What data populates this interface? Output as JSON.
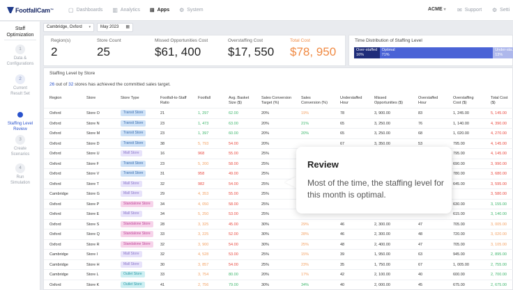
{
  "nav": {
    "brand": "FootfallCam",
    "brand_tm": "™",
    "items": [
      {
        "label": "Dashboards",
        "icon": "dashboard-icon",
        "glyph": "▢"
      },
      {
        "label": "Analytics",
        "icon": "analytics-icon",
        "glyph": "▥"
      },
      {
        "label": "Apps",
        "icon": "apps-icon",
        "glyph": "⊞"
      },
      {
        "label": "System",
        "icon": "system-icon",
        "glyph": "⚙"
      }
    ],
    "account": "ACME",
    "support": "Support",
    "settings": "Setti"
  },
  "sidebar": {
    "title": "Staff\nOptimization",
    "steps": [
      {
        "number": "1",
        "label": "Data &\nConfigurations"
      },
      {
        "number": "2",
        "label": "Current\nResult Set"
      },
      {
        "number": "",
        "label": "Staffing Level\nReview"
      },
      {
        "number": "3",
        "label": "Create\nScenarios"
      },
      {
        "number": "4",
        "label": "Run\nSimulation"
      }
    ]
  },
  "filters": {
    "site": "Cambridge, Oxford",
    "month": "May 2023"
  },
  "kpis": [
    {
      "label": "Region(s)",
      "value": "2"
    },
    {
      "label": "Store Count",
      "value": "25"
    },
    {
      "label": "Missed Opportunities Cost",
      "value": "$61, 400"
    },
    {
      "label": "Overstaffing Cost",
      "value": "$17, 550"
    },
    {
      "label": "Total Cost",
      "value": "$78, 950"
    }
  ],
  "time_distribution": {
    "title": "Time Distribution of Staffing Level",
    "segments": [
      {
        "label": "Over-staffed",
        "pct": "16%",
        "value": 16,
        "color": "#1f2d7a"
      },
      {
        "label": "Optimal",
        "pct": "71%",
        "value": 71,
        "color": "#4a63d6"
      },
      {
        "label": "Under-sta…",
        "pct": "13%",
        "value": 13,
        "color": "#aeb8ec"
      }
    ]
  },
  "table": {
    "title": "Staffing Level by Store",
    "summary_count": "26",
    "summary_mid": " out of ",
    "summary_total": "32",
    "summary_rest": " stores has achieved the committed sales target.",
    "headers": [
      "Region",
      "Store",
      "Store Type",
      "Footfall-to-Staff\nRatio",
      "Footfall",
      "Avg. Basket\nSize ($)",
      "Sales Conversion\nTarget (%)",
      "Sales\nConversion (%)",
      "Understaffed\nHour",
      "Missed\nOpportunities ($)",
      "Overstaffed\nHour",
      "Overstaffing\nCost ($)",
      "Total Cost ($)"
    ],
    "rows": [
      {
        "region": "Oxford",
        "store": "Store O",
        "type": "Transit Store",
        "ratio": "21",
        "footfall": "1, 297",
        "basket": "62.00",
        "target": "20%",
        "conv": "19%",
        "under": "78",
        "missed": "3, 900.00",
        "over": "83",
        "overcost": "1, 245.00",
        "total": "5, 145.00"
      },
      {
        "region": "Oxford",
        "store": "Store N",
        "type": "Transit Store",
        "ratio": "23",
        "footfall": "1, 473",
        "basket": "63.00",
        "target": "20%",
        "conv": "21%",
        "under": "65",
        "missed": "3, 250.00",
        "over": "76",
        "overcost": "1, 140.00",
        "total": "4, 390.00"
      },
      {
        "region": "Oxford",
        "store": "Store M",
        "type": "Transit Store",
        "ratio": "23",
        "footfall": "1, 397",
        "basket": "60.00",
        "target": "20%",
        "conv": "20%",
        "under": "65",
        "missed": "3, 250.00",
        "over": "68",
        "overcost": "1, 020.00",
        "total": "4, 270.00"
      },
      {
        "region": "Oxford",
        "store": "Store D",
        "type": "Transit Store",
        "ratio": "38",
        "footfall": "5, 793",
        "basket": "54.00",
        "target": "20%",
        "conv": "",
        "under": "67",
        "missed": "3, 350.00",
        "over": "53",
        "overcost": "795.00",
        "total": "4, 145.00"
      },
      {
        "region": "Oxford",
        "store": "Store U",
        "type": "Mall Store",
        "ratio": "16",
        "footfall": "968",
        "basket": "55.00",
        "target": "25%",
        "conv": "",
        "under": "",
        "missed": "",
        "over": "",
        "overcost": "795.00",
        "total": "4, 145.00"
      },
      {
        "region": "Oxford",
        "store": "Store F",
        "type": "Transit Store",
        "ratio": "23",
        "footfall": "5, 200",
        "basket": "58.00",
        "target": "25%",
        "conv": "",
        "under": "",
        "missed": "",
        "over": "",
        "overcost": "690.00",
        "total": "3, 990.00"
      },
      {
        "region": "Oxford",
        "store": "Store V",
        "type": "Transit Store",
        "ratio": "31",
        "footfall": "958",
        "basket": "49.00",
        "target": "25%",
        "conv": "",
        "under": "",
        "missed": "",
        "over": "",
        "overcost": "780.00",
        "total": "3, 680.00"
      },
      {
        "region": "Oxford",
        "store": "Store T",
        "type": "Mall Store",
        "ratio": "32",
        "footfall": "982",
        "basket": "54.00",
        "target": "25%",
        "conv": "",
        "under": "",
        "missed": "",
        "over": "",
        "overcost": "645.00",
        "total": "3, 595.00"
      },
      {
        "region": "Cambridge",
        "store": "Store G",
        "type": "Mall Store",
        "ratio": "29",
        "footfall": "4, 353",
        "basket": "55.00",
        "target": "25%",
        "conv": "",
        "under": "",
        "missed": "",
        "over": "",
        "overcost": "",
        "total": "3, 580.00"
      },
      {
        "region": "Oxford",
        "store": "Store P",
        "type": "Standalone Store",
        "ratio": "34",
        "footfall": "4, 050",
        "basket": "58.00",
        "target": "25%",
        "conv": "",
        "under": "",
        "missed": "",
        "over": "",
        "overcost": "630.00",
        "total": "3, 155.00"
      },
      {
        "region": "Oxford",
        "store": "Store E",
        "type": "Mall Store",
        "ratio": "34",
        "footfall": "5, 250",
        "basket": "53.00",
        "target": "25%",
        "conv": "",
        "under": "",
        "missed": "",
        "over": "",
        "overcost": "615.00",
        "total": "3, 140.00"
      },
      {
        "region": "Oxford",
        "store": "Store S",
        "type": "Standalone Store",
        "ratio": "28",
        "footfall": "3, 325",
        "basket": "45.00",
        "target": "30%",
        "conv": "29%",
        "under": "46",
        "missed": "2, 300.00",
        "over": "47",
        "overcost": "705.00",
        "total": "3, 005.00"
      },
      {
        "region": "Oxford",
        "store": "Store Q",
        "type": "Standalone Store",
        "ratio": "33",
        "footfall": "3, 225",
        "basket": "52.00",
        "target": "30%",
        "conv": "28%",
        "under": "46",
        "missed": "2, 300.00",
        "over": "48",
        "overcost": "720.00",
        "total": "3, 020.00"
      },
      {
        "region": "Oxford",
        "store": "Store R",
        "type": "Standalone Store",
        "ratio": "32",
        "footfall": "3, 900",
        "basket": "54.00",
        "target": "30%",
        "conv": "25%",
        "under": "48",
        "missed": "2, 400.00",
        "over": "47",
        "overcost": "705.00",
        "total": "3, 105.00"
      },
      {
        "region": "Cambridge",
        "store": "Store I",
        "type": "Mall Store",
        "ratio": "32",
        "footfall": "4, 528",
        "basket": "53.00",
        "target": "25%",
        "conv": "15%",
        "under": "39",
        "missed": "1, 950.00",
        "over": "63",
        "overcost": "945.00",
        "total": "2, 895.00"
      },
      {
        "region": "Cambridge",
        "store": "Store H",
        "type": "Mall Store",
        "ratio": "30",
        "footfall": "3, 857",
        "basket": "54.00",
        "target": "25%",
        "conv": "23%",
        "under": "35",
        "missed": "1, 750.00",
        "over": "67",
        "overcost": "1, 005.00",
        "total": "2, 755.00"
      },
      {
        "region": "Cambridge",
        "store": "Store L",
        "type": "Outlet Store",
        "ratio": "33",
        "footfall": "3, 754",
        "basket": "80.00",
        "target": "20%",
        "conv": "17%",
        "under": "42",
        "missed": "2, 100.00",
        "over": "40",
        "overcost": "600.00",
        "total": "2, 700.00"
      },
      {
        "region": "Oxford",
        "store": "Store K",
        "type": "Outlet Store",
        "ratio": "41",
        "footfall": "2, 756",
        "basket": "79.00",
        "target": "30%",
        "conv": "34%",
        "under": "40",
        "missed": "2, 000.00",
        "over": "45",
        "overcost": "675.00",
        "total": "2, 675.00"
      }
    ]
  },
  "tooltip": {
    "title": "Review",
    "body": "Most of the time, the staffing level for this month is optimal."
  }
}
